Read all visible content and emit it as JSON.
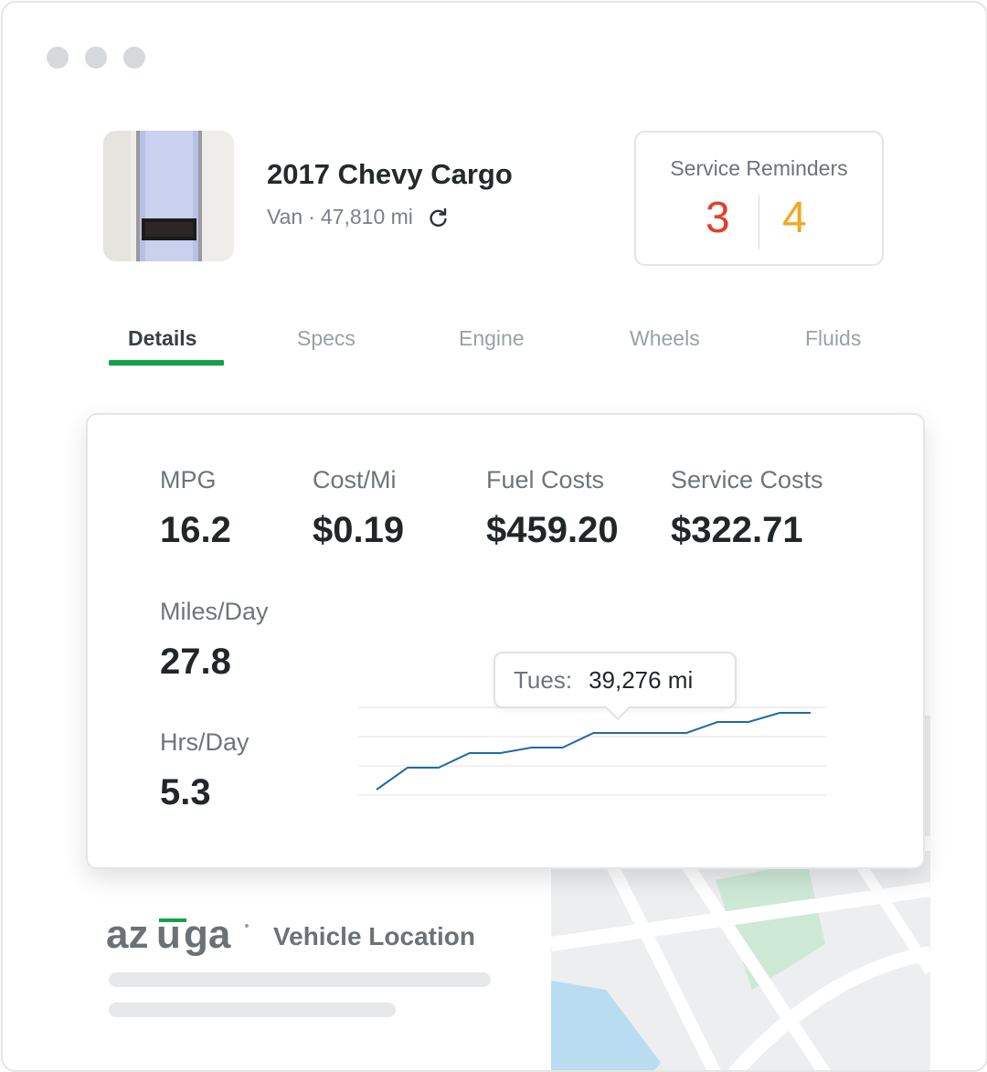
{
  "vehicle": {
    "title": "2017 Chevy Cargo",
    "type": "Van",
    "separator": "·",
    "mileage": "47,810 mi",
    "refresh_icon": "refresh-icon"
  },
  "reminders": {
    "label": "Service Reminders",
    "overdue": "3",
    "due_soon": "4",
    "overdue_color": "#e0402a",
    "due_soon_color": "#f0a824"
  },
  "tabs": [
    {
      "label": "Details",
      "active": true
    },
    {
      "label": "Specs",
      "active": false
    },
    {
      "label": "Engine",
      "active": false
    },
    {
      "label": "Wheels",
      "active": false
    },
    {
      "label": "Fluids",
      "active": false
    }
  ],
  "stats": {
    "mpg": {
      "label": "MPG",
      "value": "16.2"
    },
    "cost_mi": {
      "label": "Cost/Mi",
      "value": "$0.19"
    },
    "fuel_costs": {
      "label": "Fuel Costs",
      "value": "$459.20"
    },
    "service_costs": {
      "label": "Service Costs",
      "value": "$322.71"
    },
    "miles_day": {
      "label": "Miles/Day",
      "value": "27.8"
    },
    "hrs_day": {
      "label": "Hrs/Day",
      "value": "5.3"
    }
  },
  "chart_data": {
    "type": "line",
    "series": [
      {
        "values": [
          0,
          1.2,
          1.2,
          2.0,
          2.0,
          2.3,
          2.3,
          3.1,
          3.1,
          3.1,
          3.1,
          3.7,
          3.7,
          4.2,
          4.2
        ]
      }
    ],
    "ylim": [
      0,
      5
    ],
    "grid": true,
    "line_color": "#1f6aa8",
    "tooltip": {
      "label": "Tues:",
      "value": "39,276 mi"
    }
  },
  "brand": {
    "logo_text": "azuga"
  },
  "location": {
    "label": "Vehicle Location"
  },
  "accent_color": "#17a04a"
}
